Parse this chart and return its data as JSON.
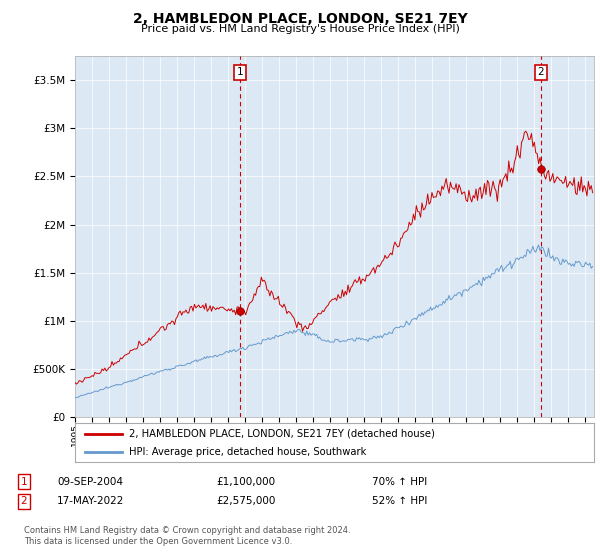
{
  "title": "2, HAMBLEDON PLACE, LONDON, SE21 7EY",
  "subtitle": "Price paid vs. HM Land Registry's House Price Index (HPI)",
  "plot_bg_color": "#dce9f5",
  "ylim": [
    0,
    3750000
  ],
  "yticks": [
    0,
    500000,
    1000000,
    1500000,
    2000000,
    2500000,
    3000000,
    3500000
  ],
  "ytick_labels": [
    "£0",
    "£500K",
    "£1M",
    "£1.5M",
    "£2M",
    "£2.5M",
    "£3M",
    "£3.5M"
  ],
  "sale1_date": "09-SEP-2004",
  "sale1_price": 1100000,
  "sale1_x": 2004.69,
  "sale1_hpi_pct": "70%",
  "sale2_date": "17-MAY-2022",
  "sale2_price": 2575000,
  "sale2_x": 2022.38,
  "sale2_hpi_pct": "52%",
  "line1_label": "2, HAMBLEDON PLACE, LONDON, SE21 7EY (detached house)",
  "line2_label": "HPI: Average price, detached house, Southwark",
  "red_color": "#cc0000",
  "blue_color": "#6699cc",
  "footer": "Contains HM Land Registry data © Crown copyright and database right 2024.\nThis data is licensed under the Open Government Licence v3.0.",
  "xmin": 1995.0,
  "xmax": 2025.5
}
